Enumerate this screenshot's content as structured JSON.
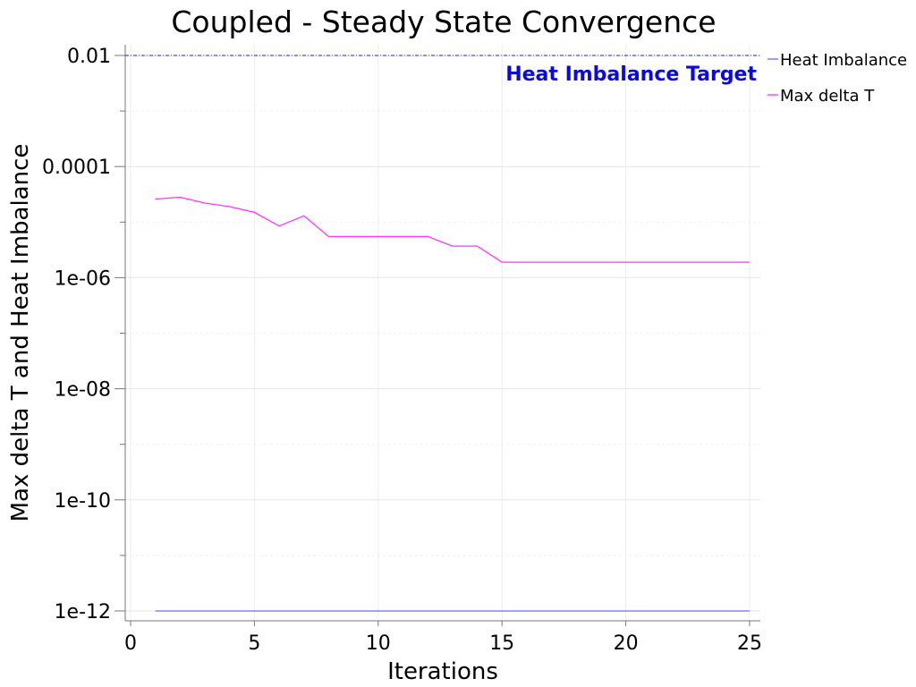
{
  "chart_data": {
    "type": "line",
    "title": "Coupled - Steady State Convergence",
    "xlabel": "Iterations",
    "ylabel": "Max delta T and Heat Imbalance",
    "xlim": [
      0,
      25
    ],
    "ylim": [
      1e-12,
      0.01
    ],
    "yscale": "log",
    "grid": true,
    "legend_position": "top-right outside",
    "x_ticks": [
      0,
      5,
      10,
      15,
      20,
      25
    ],
    "y_ticks": [
      0.01,
      0.0001,
      1e-06,
      1e-08,
      1e-10,
      1e-12
    ],
    "y_tick_labels": [
      "0.01",
      "0.0001",
      "1e-06",
      "1e-08",
      "1e-10",
      "1e-12"
    ],
    "series": [
      {
        "name": "Heat Imbalance",
        "color": "#6a6aff",
        "x": [
          1,
          2,
          3,
          4,
          5,
          6,
          7,
          8,
          9,
          10,
          11,
          12,
          13,
          14,
          15,
          16,
          17,
          18,
          19,
          20,
          21,
          22,
          23,
          24,
          25
        ],
        "y": [
          1e-12,
          1e-12,
          1e-12,
          1e-12,
          1e-12,
          1e-12,
          1e-12,
          1e-12,
          1e-12,
          1e-12,
          1e-12,
          1e-12,
          1e-12,
          1e-12,
          1e-12,
          1e-12,
          1e-12,
          1e-12,
          1e-12,
          1e-12,
          1e-12,
          1e-12,
          1e-12,
          1e-12,
          1e-12
        ]
      },
      {
        "name": "Max delta T",
        "color": "#ff33ff",
        "x": [
          1,
          2,
          3,
          4,
          5,
          6,
          7,
          8,
          9,
          10,
          11,
          12,
          13,
          14,
          15,
          16,
          17,
          18,
          19,
          20,
          21,
          22,
          23,
          24,
          25
        ],
        "y": [
          2.6e-05,
          2.8e-05,
          2.2e-05,
          1.9e-05,
          1.5e-05,
          8.5e-06,
          1.3e-05,
          5.5e-06,
          5.5e-06,
          5.5e-06,
          5.5e-06,
          5.5e-06,
          3.7e-06,
          3.7e-06,
          1.9e-06,
          1.9e-06,
          1.9e-06,
          1.9e-06,
          1.9e-06,
          1.9e-06,
          1.9e-06,
          1.9e-06,
          1.9e-06,
          1.9e-06,
          1.9e-06
        ]
      }
    ],
    "target_line": {
      "label": "Heat Imbalance Target",
      "value": 0.01,
      "color": "#1a1aff",
      "label_color": "#0a0ae0"
    }
  }
}
